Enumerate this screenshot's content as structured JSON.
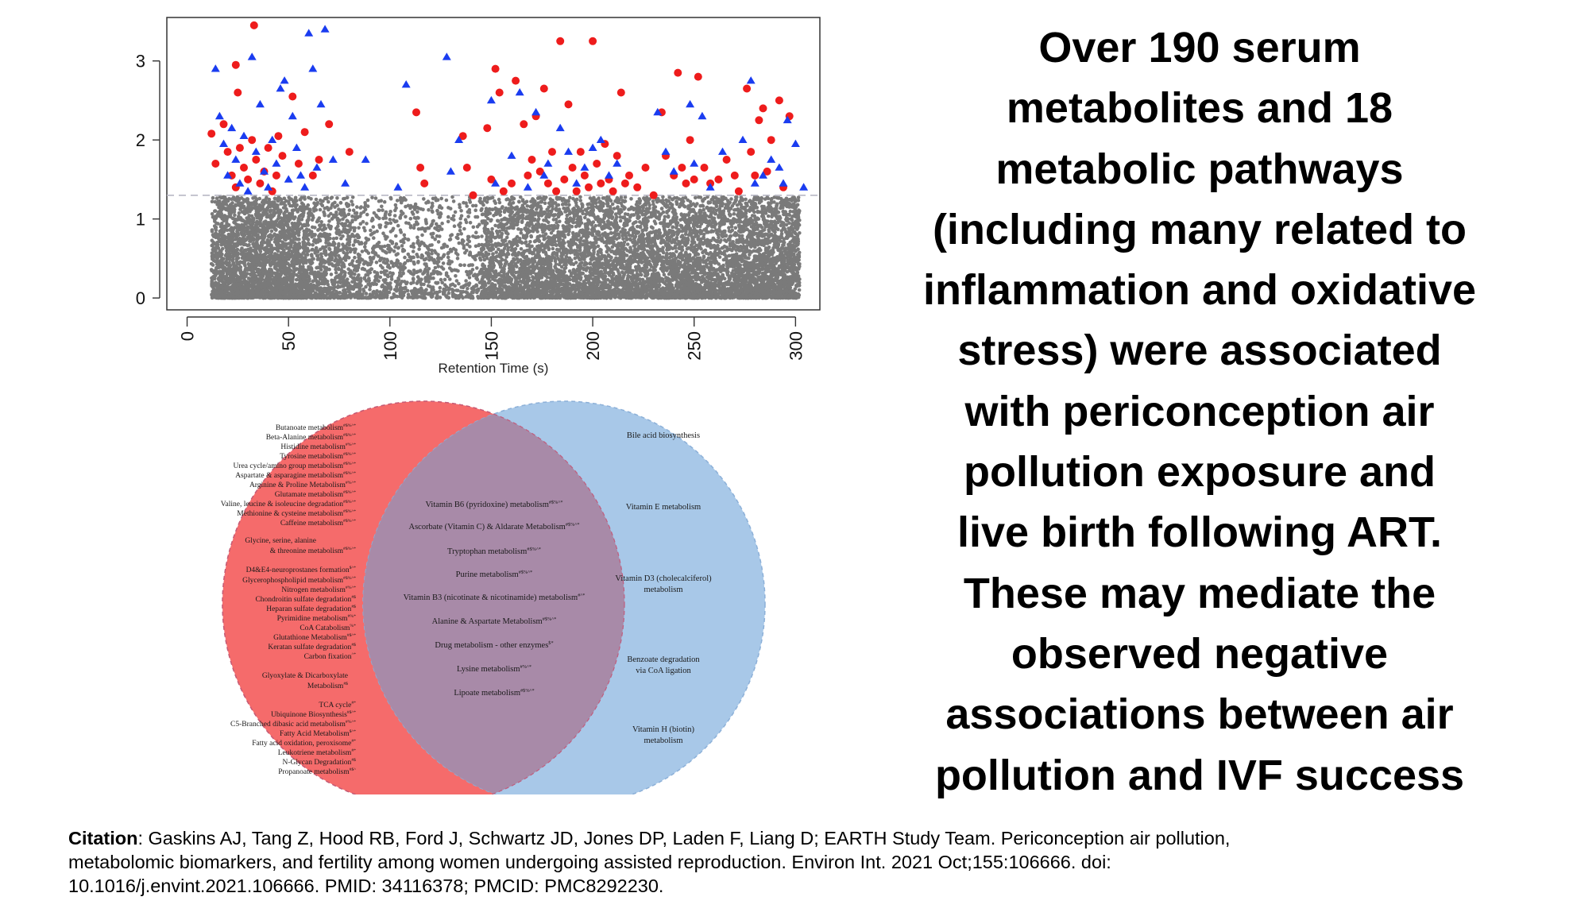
{
  "headline": [
    "Over 190 serum",
    "metabolites and 18",
    "metabolic pathways",
    "(including many related to",
    "inflammation and oxidative",
    "stress) were associated",
    "with periconception air",
    "pollution exposure and",
    "live birth following ART.",
    "These may mediate the",
    "observed negative",
    "associations between air",
    "pollution and IVF success"
  ],
  "citation": {
    "label": "Citation",
    "line1": ": Gaskins AJ, Tang Z, Hood RB, Ford J, Schwartz JD, Jones DP, Laden F, Liang D; EARTH Study Team. Periconception air pollution,",
    "line2": "metabolomic biomarkers, and fertility among women undergoing assisted reproduction. Environ Int. 2021 Oct;155:106666. doi:",
    "line3": "10.1016/j.envint.2021.106666. PMID: 34116378; PMCID: PMC8292230."
  },
  "chart_data": [
    {
      "type": "scatter",
      "xlabel": "Retention Time (s)",
      "ylabel": "",
      "xlim": [
        -10,
        312
      ],
      "ylim": [
        -0.15,
        3.55
      ],
      "xticks": [
        0,
        50,
        100,
        150,
        200,
        250,
        300
      ],
      "yticks": [
        0,
        1,
        2,
        3
      ],
      "threshold_line": 1.3,
      "grid": false,
      "colors": {
        "gray": "#7a7a7a",
        "red": "#ee1c1c",
        "blue": "#1a3cf0",
        "threshold": "#b8b8c4"
      },
      "gray_density": [
        [
          12,
          30,
          1.0
        ],
        [
          30,
          60,
          1.0
        ],
        [
          60,
          80,
          0.55
        ],
        [
          80,
          100,
          0.35
        ],
        [
          100,
          125,
          0.3
        ],
        [
          125,
          145,
          0.22
        ],
        [
          145,
          165,
          0.65
        ],
        [
          165,
          225,
          0.75
        ],
        [
          225,
          270,
          0.8
        ],
        [
          270,
          302,
          1.0
        ]
      ],
      "series": [
        {
          "marker": "circle",
          "color": "#ee1c1c",
          "points": [
            [
              33,
              3.45
            ],
            [
              24,
              2.95
            ],
            [
              25,
              2.6
            ],
            [
              12,
              2.08
            ],
            [
              14,
              1.7
            ],
            [
              18,
              2.2
            ],
            [
              20,
              1.85
            ],
            [
              22,
              1.55
            ],
            [
              24,
              1.4
            ],
            [
              26,
              1.9
            ],
            [
              28,
              1.65
            ],
            [
              30,
              1.5
            ],
            [
              32,
              2.0
            ],
            [
              34,
              1.75
            ],
            [
              36,
              1.45
            ],
            [
              38,
              1.6
            ],
            [
              40,
              1.9
            ],
            [
              42,
              1.35
            ],
            [
              44,
              1.55
            ],
            [
              45,
              2.05
            ],
            [
              47,
              1.8
            ],
            [
              52,
              2.55
            ],
            [
              55,
              1.7
            ],
            [
              58,
              2.1
            ],
            [
              62,
              1.55
            ],
            [
              65,
              1.75
            ],
            [
              70,
              2.2
            ],
            [
              80,
              1.85
            ],
            [
              113,
              2.35
            ],
            [
              115,
              1.65
            ],
            [
              117,
              1.45
            ],
            [
              136,
              2.05
            ],
            [
              138,
              1.65
            ],
            [
              141,
              1.3
            ],
            [
              148,
              2.15
            ],
            [
              150,
              1.5
            ],
            [
              152,
              2.9
            ],
            [
              154,
              2.6
            ],
            [
              156,
              1.35
            ],
            [
              160,
              1.45
            ],
            [
              162,
              2.75
            ],
            [
              166,
              2.2
            ],
            [
              168,
              1.55
            ],
            [
              170,
              1.75
            ],
            [
              172,
              2.3
            ],
            [
              174,
              1.6
            ],
            [
              176,
              2.65
            ],
            [
              178,
              1.45
            ],
            [
              180,
              1.85
            ],
            [
              182,
              1.35
            ],
            [
              184,
              3.25
            ],
            [
              186,
              1.5
            ],
            [
              188,
              2.45
            ],
            [
              190,
              1.65
            ],
            [
              192,
              1.35
            ],
            [
              194,
              1.85
            ],
            [
              196,
              1.55
            ],
            [
              198,
              1.4
            ],
            [
              200,
              3.25
            ],
            [
              202,
              1.7
            ],
            [
              204,
              1.45
            ],
            [
              206,
              1.95
            ],
            [
              208,
              1.5
            ],
            [
              210,
              1.35
            ],
            [
              212,
              1.8
            ],
            [
              214,
              2.6
            ],
            [
              216,
              1.45
            ],
            [
              218,
              1.55
            ],
            [
              222,
              1.4
            ],
            [
              226,
              1.65
            ],
            [
              230,
              1.3
            ],
            [
              234,
              2.35
            ],
            [
              236,
              1.8
            ],
            [
              240,
              1.55
            ],
            [
              242,
              2.85
            ],
            [
              244,
              1.65
            ],
            [
              246,
              1.45
            ],
            [
              248,
              2.0
            ],
            [
              250,
              1.5
            ],
            [
              252,
              2.8
            ],
            [
              255,
              1.65
            ],
            [
              258,
              1.45
            ],
            [
              262,
              1.5
            ],
            [
              266,
              1.75
            ],
            [
              270,
              1.55
            ],
            [
              272,
              1.35
            ],
            [
              276,
              2.65
            ],
            [
              278,
              1.85
            ],
            [
              280,
              1.55
            ],
            [
              282,
              2.25
            ],
            [
              284,
              2.4
            ],
            [
              286,
              1.6
            ],
            [
              288,
              2.0
            ],
            [
              292,
              2.5
            ],
            [
              294,
              1.4
            ],
            [
              297,
              2.3
            ]
          ]
        },
        {
          "marker": "triangle",
          "color": "#1a3cf0",
          "points": [
            [
              14,
              2.9
            ],
            [
              16,
              2.3
            ],
            [
              18,
              1.95
            ],
            [
              20,
              1.55
            ],
            [
              22,
              2.15
            ],
            [
              24,
              1.75
            ],
            [
              26,
              1.45
            ],
            [
              28,
              2.05
            ],
            [
              30,
              1.35
            ],
            [
              32,
              3.05
            ],
            [
              34,
              1.85
            ],
            [
              36,
              2.45
            ],
            [
              38,
              1.6
            ],
            [
              40,
              1.4
            ],
            [
              42,
              2.0
            ],
            [
              44,
              1.7
            ],
            [
              46,
              2.65
            ],
            [
              48,
              2.75
            ],
            [
              50,
              1.5
            ],
            [
              52,
              2.3
            ],
            [
              54,
              1.9
            ],
            [
              56,
              1.55
            ],
            [
              58,
              1.4
            ],
            [
              60,
              3.35
            ],
            [
              62,
              2.9
            ],
            [
              64,
              1.65
            ],
            [
              66,
              2.45
            ],
            [
              68,
              3.4
            ],
            [
              72,
              1.75
            ],
            [
              78,
              1.45
            ],
            [
              88,
              1.75
            ],
            [
              104,
              1.4
            ],
            [
              108,
              2.7
            ],
            [
              128,
              3.05
            ],
            [
              130,
              1.6
            ],
            [
              134,
              2.0
            ],
            [
              150,
              2.5
            ],
            [
              152,
              1.45
            ],
            [
              160,
              1.8
            ],
            [
              164,
              2.6
            ],
            [
              168,
              1.4
            ],
            [
              172,
              2.35
            ],
            [
              176,
              1.55
            ],
            [
              178,
              1.7
            ],
            [
              184,
              2.15
            ],
            [
              188,
              1.85
            ],
            [
              192,
              1.45
            ],
            [
              196,
              1.65
            ],
            [
              200,
              1.9
            ],
            [
              204,
              2.0
            ],
            [
              208,
              1.55
            ],
            [
              212,
              1.7
            ],
            [
              232,
              2.35
            ],
            [
              236,
              1.85
            ],
            [
              240,
              1.6
            ],
            [
              248,
              2.45
            ],
            [
              250,
              1.7
            ],
            [
              254,
              2.3
            ],
            [
              258,
              1.4
            ],
            [
              264,
              1.85
            ],
            [
              274,
              2.0
            ],
            [
              278,
              2.75
            ],
            [
              280,
              1.45
            ],
            [
              284,
              1.55
            ],
            [
              288,
              1.75
            ],
            [
              292,
              1.65
            ],
            [
              294,
              1.45
            ],
            [
              296,
              2.25
            ],
            [
              300,
              1.95
            ],
            [
              304,
              1.4
            ]
          ]
        }
      ]
    },
    {
      "type": "venn",
      "colors": {
        "left": "#f56b6b",
        "right": "#a8c8e8",
        "overlap": "#a88aa8"
      },
      "left_only": [
        {
          "text": "Butanoate metabolism",
          "sup": "#$%^*"
        },
        {
          "text": "Beta-Alanine metabolism",
          "sup": "#$%^*"
        },
        {
          "text": "Histidine metabolism",
          "sup": "#%^*"
        },
        {
          "text": "Tyrosine metabolism",
          "sup": "#$%^*"
        },
        {
          "text": "Urea cycle/amino group metabolism",
          "sup": "#$%^*"
        },
        {
          "text": "Aspartate & asparagine metabolism",
          "sup": "#$%^*"
        },
        {
          "text": "Arginine & Proline Metabolism",
          "sup": "#%^*"
        },
        {
          "text": "Glutamate metabolism",
          "sup": "#$%^*"
        },
        {
          "text": "Valine, leucine & isoleucine degradation",
          "sup": "#$%^*"
        },
        {
          "text": "Methionine & cysteine metabolism",
          "sup": "#$%^*"
        },
        {
          "text": "Caffeine metabolism",
          "sup": "#$%^*"
        },
        {
          "text": "Glycine, serine, alanine",
          "sup": ""
        },
        {
          "text": "& threonine metabolism",
          "sup": "#$%^*"
        },
        {
          "text": "D4&E4-neuroprostanes formation",
          "sup": "$^*"
        },
        {
          "text": "Glycerophospholipid metabolism",
          "sup": "#$%^*"
        },
        {
          "text": "Nitrogen metabolism",
          "sup": "#%^*"
        },
        {
          "text": "Chondroitin sulfate degradation",
          "sup": "#$"
        },
        {
          "text": "Heparan sulfate degradation",
          "sup": "#$"
        },
        {
          "text": "Pyrimidine metabolism",
          "sup": "#%*"
        },
        {
          "text": "CoA Catabolism",
          "sup": "%*"
        },
        {
          "text": "Glutathione Metabolism",
          "sup": "#$^*"
        },
        {
          "text": "Keratan sulfate degradation",
          "sup": "#$"
        },
        {
          "text": "Carbon fixation",
          "sup": "^*"
        },
        {
          "text": "Glyoxylate & Dicarboxylate",
          "sup": ""
        },
        {
          "text": "Metabolism",
          "sup": "#$"
        },
        {
          "text": "TCA cycle",
          "sup": "#*"
        },
        {
          "text": "Ubiquinone Biosynthesis",
          "sup": "#$^*"
        },
        {
          "text": "C5-Branched dibasic acid metabolism",
          "sup": "#%^*"
        },
        {
          "text": "Fatty Acid Metabolism",
          "sup": "$^*"
        },
        {
          "text": "Fatty acid oxidation, peroxisome",
          "sup": "#*"
        },
        {
          "text": "Leukotriene metabolism",
          "sup": "#*"
        },
        {
          "text": "N-Glycan Degradation",
          "sup": "#$"
        },
        {
          "text": "Propanoate metabolism",
          "sup": "#$^"
        }
      ],
      "overlap": [
        {
          "text": "Vitamin B6 (pyridoxine) metabolism",
          "sup": "#$%^*"
        },
        {
          "text": "Ascorbate (Vitamin C) & Aldarate Metabolism",
          "sup": "#$%^*"
        },
        {
          "text": "Tryptophan metabolism",
          "sup": "#$%^*"
        },
        {
          "text": "Purine metabolism",
          "sup": "#$%^*"
        },
        {
          "text": "Vitamin B3 (nicotinate & nicotinamide) metabolism",
          "sup": "#^*"
        },
        {
          "text": "Alanine & Aspartate Metabolism",
          "sup": "#$%^*"
        },
        {
          "text": "Drug metabolism - other enzymes",
          "sup": "$*"
        },
        {
          "text": "Lysine metabolism",
          "sup": "#%^*"
        },
        {
          "text": "Lipoate metabolism",
          "sup": "#$%^*"
        }
      ],
      "right_only": [
        {
          "text": "Bile acid biosynthesis",
          "sup": ""
        },
        {
          "text": "Vitamin E metabolism",
          "sup": ""
        },
        {
          "text": "Vitamin D3 (cholecalciferol)",
          "sup": ""
        },
        {
          "text": "metabolism",
          "sup": ""
        },
        {
          "text": "Benzoate degradation",
          "sup": ""
        },
        {
          "text": "via CoA ligation",
          "sup": ""
        },
        {
          "text": "Vitamin H (biotin)",
          "sup": ""
        },
        {
          "text": "metabolism",
          "sup": ""
        }
      ]
    }
  ]
}
